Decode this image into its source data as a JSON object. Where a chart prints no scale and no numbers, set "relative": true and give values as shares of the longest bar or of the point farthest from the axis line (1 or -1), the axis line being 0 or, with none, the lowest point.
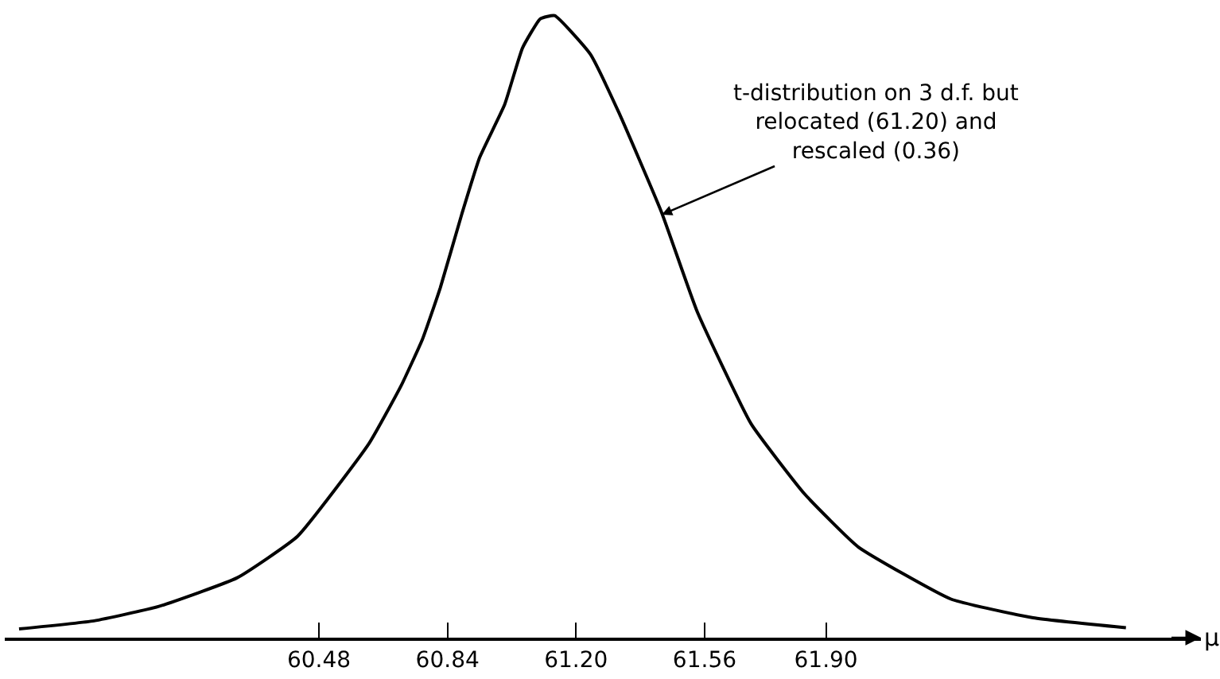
{
  "chart_data": {
    "type": "line",
    "relative": true,
    "x": [
      59.64,
      59.85,
      60.03,
      60.25,
      60.42,
      60.62,
      60.71,
      60.77,
      60.82,
      60.88,
      60.93,
      61.0,
      61.05,
      61.1,
      61.14,
      61.24,
      61.32,
      61.44,
      61.54,
      61.69,
      61.84,
      61.99,
      62.25,
      62.48,
      62.74
    ],
    "series": [
      {
        "color": "#000000",
        "values": [
          0.014,
          0.027,
          0.05,
          0.096,
          0.163,
          0.312,
          0.405,
          0.48,
          0.563,
          0.681,
          0.772,
          0.857,
          0.948,
          0.995,
          1,
          0.938,
          0.844,
          0.683,
          0.523,
          0.344,
          0.231,
          0.146,
          0.062,
          0.032,
          0.016
        ]
      }
    ],
    "xlim": [
      59.6,
      62.95
    ],
    "xticks": [
      60.48,
      60.84,
      {
        "value": 61.2,
        "label": "61.20"
      },
      61.56,
      {
        "value": 61.9,
        "label": "61.90"
      }
    ],
    "xlabel": "μ",
    "annotations": [
      {
        "text": "t-distribution on 3 d.f. but\nrelocated (61.20) and\nrescaled (0.36)",
        "x": 61.44,
        "y": 0.68
      }
    ],
    "marker": "none",
    "line_style": "solid"
  }
}
